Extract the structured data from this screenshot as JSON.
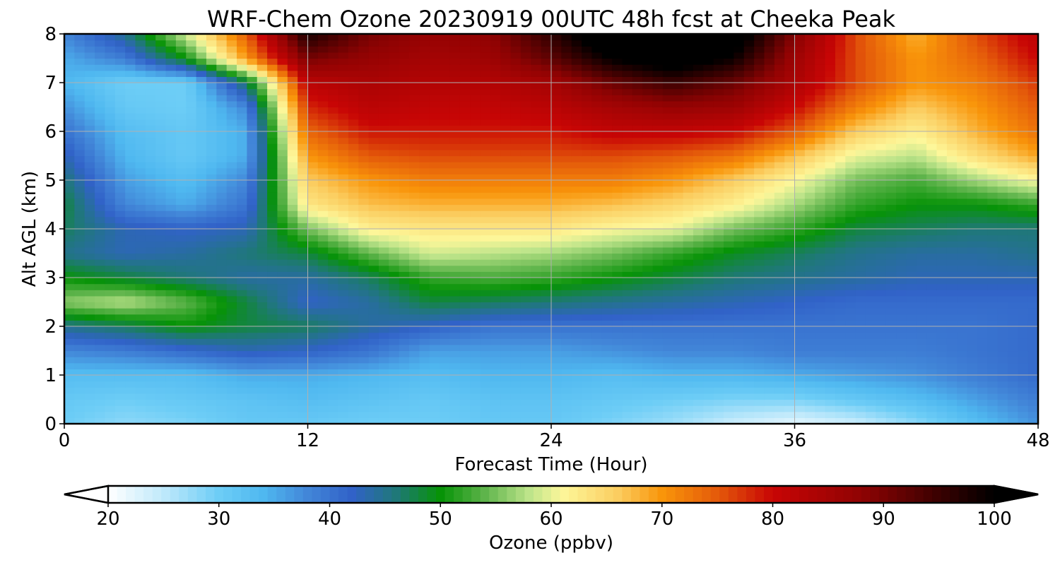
{
  "chart_data": {
    "type": "heatmap",
    "title": "WRF-Chem Ozone  20230919 00UTC 48h fcst at Cheeka Peak",
    "xlabel": "Forecast Time (Hour)",
    "ylabel": "Alt AGL (km)",
    "xlim": [
      0,
      48
    ],
    "ylim": [
      0,
      8
    ],
    "x_ticks": [
      0,
      12,
      24,
      36,
      48
    ],
    "y_ticks": [
      0,
      1,
      2,
      3,
      4,
      5,
      6,
      7,
      8
    ],
    "grid": true,
    "z_grid": {
      "x": [
        0,
        3,
        6,
        9,
        12,
        15,
        18,
        21,
        24,
        27,
        30,
        33,
        36,
        39,
        42,
        45,
        48
      ],
      "y": [
        0,
        0.5,
        1,
        1.5,
        2,
        2.5,
        3,
        3.5,
        4,
        4.5,
        5,
        5.5,
        6,
        6.5,
        7,
        7.5,
        8
      ],
      "z": [
        [
          30,
          28,
          29,
          31,
          31,
          30,
          30,
          31,
          31,
          29,
          27,
          24,
          22,
          24,
          28,
          33,
          37
        ],
        [
          31,
          30,
          31,
          32,
          33,
          32,
          31,
          32,
          32,
          31,
          30,
          29,
          29,
          31,
          33,
          36,
          39
        ],
        [
          33,
          33,
          33,
          35,
          35,
          34,
          33,
          34,
          34,
          33,
          34,
          34,
          35,
          36,
          37,
          39,
          41
        ],
        [
          38,
          39,
          41,
          43,
          42,
          40,
          36,
          36,
          36,
          37,
          38,
          38,
          39,
          39,
          39,
          40,
          41
        ],
        [
          45,
          47,
          50,
          48,
          47,
          44,
          42,
          40,
          40,
          40,
          40,
          40,
          40,
          40,
          40,
          40,
          41
        ],
        [
          56,
          58,
          54,
          48,
          42,
          44,
          48,
          47,
          46,
          45,
          44,
          43,
          42,
          41,
          41,
          41,
          41
        ],
        [
          50,
          48,
          46,
          44,
          44,
          47,
          52,
          53,
          52,
          50,
          48,
          46,
          45,
          44,
          43,
          43,
          43
        ],
        [
          45,
          43,
          44,
          46,
          48,
          54,
          59,
          58,
          57,
          55,
          52,
          49,
          47,
          45,
          44,
          44,
          45
        ],
        [
          47,
          43,
          42,
          43,
          55,
          62,
          63,
          63,
          63,
          61,
          60,
          55,
          52,
          48,
          47,
          46,
          46
        ],
        [
          48,
          38,
          35,
          40,
          63,
          67,
          68,
          68,
          68,
          67,
          65,
          62,
          57,
          52,
          50,
          50,
          52
        ],
        [
          46,
          36,
          33,
          38,
          66,
          70,
          72,
          72,
          72,
          72,
          70,
          66,
          61,
          55,
          53,
          57,
          61
        ],
        [
          43,
          34,
          31,
          35,
          70,
          75,
          76,
          76,
          76,
          76,
          75,
          73,
          67,
          60,
          58,
          64,
          69
        ],
        [
          40,
          33,
          31,
          35,
          74,
          79,
          79,
          79,
          79,
          81,
          81,
          80,
          75,
          66,
          62,
          68,
          73
        ],
        [
          37,
          31,
          30,
          38,
          78,
          82,
          81,
          81,
          82,
          85,
          87,
          86,
          80,
          72,
          66,
          70,
          75
        ],
        [
          34,
          30,
          30,
          47,
          82,
          84,
          83,
          83,
          85,
          91,
          95,
          91,
          84,
          76,
          70,
          72,
          77
        ],
        [
          35,
          39,
          50,
          70,
          90,
          87,
          85,
          86,
          92,
          100,
          104,
          99,
          86,
          76,
          70,
          74,
          80
        ],
        [
          38,
          45,
          59,
          75,
          98,
          90,
          87,
          88,
          96,
          106,
          108,
          104,
          89,
          76,
          68,
          76,
          82
        ]
      ]
    },
    "colorbar": {
      "label": "Ozone  (ppbv)",
      "min": 20,
      "max": 100,
      "ticks": [
        20,
        30,
        40,
        50,
        60,
        70,
        80,
        90,
        100
      ],
      "extend": "both",
      "colormap": [
        {
          "v": 20,
          "c": "#ffffff"
        },
        {
          "v": 25,
          "c": "#bfe9fb"
        },
        {
          "v": 30,
          "c": "#6dcdf6"
        },
        {
          "v": 34,
          "c": "#4fb8f0"
        },
        {
          "v": 38,
          "c": "#4286d8"
        },
        {
          "v": 42,
          "c": "#3162c8"
        },
        {
          "v": 46,
          "c": "#1f7878"
        },
        {
          "v": 50,
          "c": "#079307"
        },
        {
          "v": 54,
          "c": "#5eb44b"
        },
        {
          "v": 58,
          "c": "#bde48a"
        },
        {
          "v": 61,
          "c": "#fdf79a"
        },
        {
          "v": 66,
          "c": "#fbcd60"
        },
        {
          "v": 70,
          "c": "#f9950a"
        },
        {
          "v": 75,
          "c": "#e45a0a"
        },
        {
          "v": 80,
          "c": "#c80505"
        },
        {
          "v": 88,
          "c": "#8f0303"
        },
        {
          "v": 95,
          "c": "#3a0101"
        },
        {
          "v": 100,
          "c": "#000000"
        }
      ]
    }
  }
}
